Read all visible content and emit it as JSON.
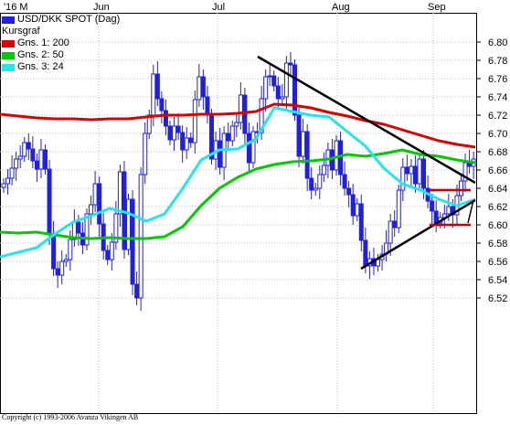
{
  "chart_data": {
    "type": "candlestick",
    "title": "USD/DKK SPOT (Dag)",
    "x_month_labels": [
      "'16 M",
      "Jun",
      "Jul",
      "Aug",
      "Sep"
    ],
    "y_ticks": [
      "6.80",
      "6.78",
      "6.76",
      "6.74",
      "6.72",
      "6.70",
      "6.68",
      "6.66",
      "6.64",
      "6.62",
      "6.60",
      "6.58",
      "6.56",
      "6.54",
      "6.52"
    ],
    "ylim": [
      6.51,
      6.815
    ],
    "grid": true,
    "legend_position": "top-left",
    "legend": [
      {
        "label": "USD/DKK SPOT (Dag)",
        "color": "#1f1fe6"
      },
      {
        "label": "Kursgraf",
        "color": null
      },
      {
        "label": "Gns. 1: 200",
        "color": "#dd0000"
      },
      {
        "label": "Gns. 2: 50",
        "color": "#00cc00"
      },
      {
        "label": "Gns. 3: 24",
        "color": "#22e5f0"
      }
    ],
    "candles_close": [
      6.645,
      6.651,
      6.662,
      6.672,
      6.675,
      6.69,
      6.683,
      6.67,
      6.661,
      6.682,
      6.661,
      6.59,
      6.552,
      6.545,
      6.56,
      6.562,
      6.584,
      6.603,
      6.591,
      6.578,
      6.612,
      6.622,
      6.645,
      6.601,
      6.572,
      6.562,
      6.581,
      6.612,
      6.658,
      6.573,
      6.628,
      6.535,
      6.52,
      6.655,
      6.7,
      6.72,
      6.765,
      6.738,
      6.725,
      6.708,
      6.693,
      6.708,
      6.701,
      6.682,
      6.695,
      6.69,
      6.737,
      6.762,
      6.74,
      6.721,
      6.672,
      6.692,
      6.663,
      6.7,
      6.692,
      6.708,
      6.712,
      6.742,
      6.7,
      6.668,
      6.702,
      6.701,
      6.738,
      6.762,
      6.763,
      6.752,
      6.738,
      6.74,
      6.777,
      6.775,
      6.72,
      6.675,
      6.702,
      6.651,
      6.638,
      6.64,
      6.655,
      6.665,
      6.682,
      6.66,
      6.692,
      6.655,
      6.64,
      6.633,
      6.61,
      6.623,
      6.583,
      6.555,
      6.563,
      6.555,
      6.562,
      6.568,
      6.58,
      6.604,
      6.597,
      6.638,
      6.663,
      6.656,
      6.664,
      6.645,
      6.672,
      6.64,
      6.626,
      6.615,
      6.602,
      6.608,
      6.612,
      6.62,
      6.611,
      6.632,
      6.648,
      6.668,
      6.664,
      6.672
    ],
    "series": [
      {
        "name": "Gns. 1: 200",
        "color": "#dd0000",
        "points": [
          [
            0,
            6.721
          ],
          [
            20,
            6.719
          ],
          [
            40,
            6.717
          ],
          [
            60,
            6.716
          ],
          [
            80,
            6.716
          ],
          [
            100,
            6.715
          ],
          [
            120,
            6.716
          ],
          [
            140,
            6.716
          ],
          [
            160,
            6.718
          ],
          [
            180,
            6.72
          ],
          [
            200,
            6.72
          ],
          [
            220,
            6.721
          ],
          [
            240,
            6.721
          ],
          [
            260,
            6.722
          ],
          [
            280,
            6.724
          ],
          [
            300,
            6.732
          ],
          [
            320,
            6.731
          ],
          [
            340,
            6.728
          ],
          [
            360,
            6.723
          ],
          [
            380,
            6.719
          ],
          [
            400,
            6.714
          ],
          [
            420,
            6.71
          ],
          [
            440,
            6.704
          ],
          [
            460,
            6.698
          ],
          [
            480,
            6.692
          ],
          [
            500,
            6.688
          ],
          [
            520,
            6.685
          ]
        ]
      },
      {
        "name": "Gns. 2: 50",
        "color": "#00cc00",
        "points": [
          [
            0,
            6.592
          ],
          [
            20,
            6.591
          ],
          [
            40,
            6.592
          ],
          [
            60,
            6.589
          ],
          [
            80,
            6.586
          ],
          [
            100,
            6.585
          ],
          [
            120,
            6.586
          ],
          [
            140,
            6.585
          ],
          [
            160,
            6.585
          ],
          [
            180,
            6.587
          ],
          [
            200,
            6.598
          ],
          [
            220,
            6.621
          ],
          [
            240,
            6.64
          ],
          [
            260,
            6.652
          ],
          [
            280,
            6.661
          ],
          [
            300,
            6.666
          ],
          [
            320,
            6.669
          ],
          [
            340,
            6.67
          ],
          [
            360,
            6.672
          ],
          [
            380,
            6.677
          ],
          [
            400,
            6.675
          ],
          [
            420,
            6.678
          ],
          [
            440,
            6.682
          ],
          [
            460,
            6.677
          ],
          [
            480,
            6.675
          ],
          [
            500,
            6.671
          ],
          [
            520,
            6.668
          ]
        ]
      },
      {
        "name": "Gns. 3: 24",
        "color": "#22e5f0",
        "points": [
          [
            0,
            6.565
          ],
          [
            20,
            6.57
          ],
          [
            40,
            6.575
          ],
          [
            60,
            6.59
          ],
          [
            80,
            6.603
          ],
          [
            100,
            6.61
          ],
          [
            120,
            6.618
          ],
          [
            140,
            6.613
          ],
          [
            160,
            6.604
          ],
          [
            180,
            6.612
          ],
          [
            200,
            6.64
          ],
          [
            220,
            6.671
          ],
          [
            240,
            6.682
          ],
          [
            260,
            6.683
          ],
          [
            280,
            6.694
          ],
          [
            300,
            6.728
          ],
          [
            320,
            6.724
          ],
          [
            340,
            6.72
          ],
          [
            360,
            6.718
          ],
          [
            380,
            6.702
          ],
          [
            400,
            6.686
          ],
          [
            420,
            6.662
          ],
          [
            440,
            6.645
          ],
          [
            460,
            6.638
          ],
          [
            480,
            6.628
          ],
          [
            500,
            6.621
          ],
          [
            520,
            6.628
          ]
        ]
      }
    ],
    "trendlines": [
      {
        "color": "#000000",
        "from": [
          282,
          6.784
        ],
        "to": [
          520,
          6.646
        ]
      },
      {
        "color": "#000000",
        "from": [
          395,
          6.552
        ],
        "to": [
          520,
          6.627
        ]
      },
      {
        "color": "#cc0000",
        "from": [
          470,
          6.638
        ],
        "to": [
          515,
          6.638
        ]
      },
      {
        "color": "#cc0000",
        "from": [
          470,
          6.6
        ],
        "to": [
          515,
          6.6
        ]
      }
    ]
  },
  "copyright": "Copyright (c) 1993-2006 Avanza Vikingen AB"
}
